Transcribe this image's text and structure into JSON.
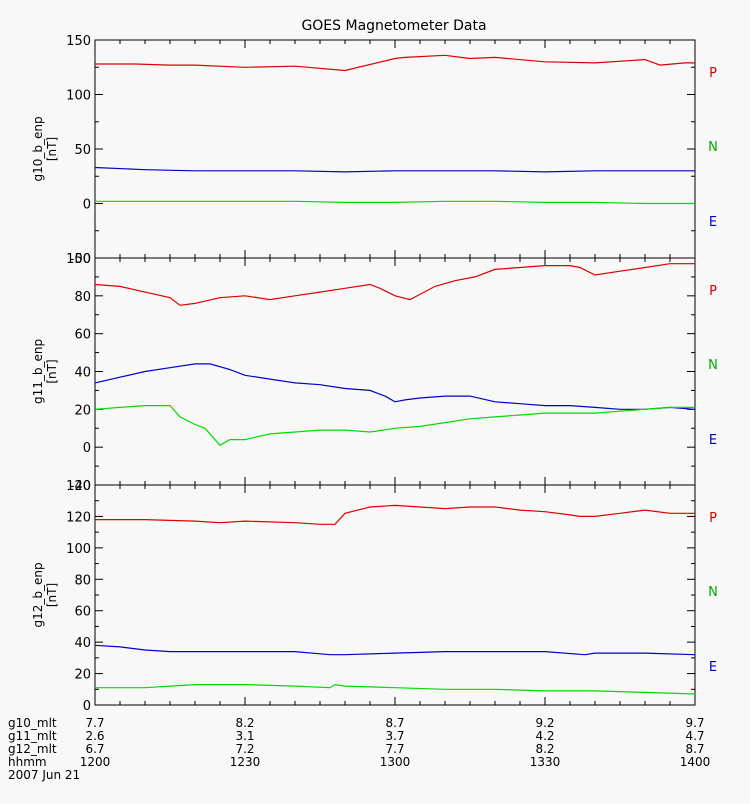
{
  "chart_data": {
    "type": "line",
    "title": "GOES Magnetometer Data",
    "x_axis": {
      "rows": [
        {
          "label": "g10_mlt",
          "values": [
            "7.7",
            "8.2",
            "8.7",
            "9.2",
            "9.7"
          ]
        },
        {
          "label": "g11_mlt",
          "values": [
            "2.6",
            "3.1",
            "3.7",
            "4.2",
            "4.7"
          ]
        },
        {
          "label": "g12_mlt",
          "values": [
            "6.7",
            "7.2",
            "7.7",
            "8.2",
            "8.7"
          ]
        },
        {
          "label": "hhmm",
          "values": [
            "1200",
            "1230",
            "1300",
            "1330",
            "1400"
          ]
        }
      ],
      "date": "2007 Jun 21",
      "range_minutes": [
        0,
        120
      ]
    },
    "panels": [
      {
        "ylabel": "g10_b_enp",
        "unit": "[nT]",
        "ylim": [
          -50,
          150
        ],
        "yticks": [
          -50,
          0,
          50,
          100,
          150
        ],
        "series": [
          {
            "name": "P",
            "color": "#dd0000",
            "x": [
              0,
              8,
              15,
              20,
              30,
              40,
              50,
              60,
              62,
              70,
              75,
              80,
              90,
              100,
              110,
              113,
              118,
              120
            ],
            "y": [
              128,
              128,
              127,
              127,
              125,
              126,
              122,
              133,
              134,
              136,
              133,
              134,
              130,
              129,
              132,
              127,
              129,
              129
            ]
          },
          {
            "name": "N",
            "color": "#0000cc",
            "x": [
              0,
              10,
              20,
              30,
              40,
              50,
              60,
              70,
              80,
              90,
              100,
              110,
              120
            ],
            "y": [
              33,
              31,
              30,
              30,
              30,
              29,
              30,
              30,
              30,
              29,
              30,
              30,
              30
            ]
          },
          {
            "name": "E",
            "color": "#00dd00",
            "x": [
              0,
              10,
              20,
              30,
              40,
              50,
              60,
              70,
              80,
              90,
              100,
              110,
              120
            ],
            "y": [
              2,
              2,
              2,
              2,
              2,
              1,
              1,
              2,
              2,
              1,
              1,
              0,
              0
            ]
          }
        ]
      },
      {
        "ylabel": "g11_b_enp",
        "unit": "[nT]",
        "ylim": [
          -20,
          100
        ],
        "yticks": [
          -20,
          0,
          20,
          40,
          60,
          80,
          100
        ],
        "series": [
          {
            "name": "P",
            "color": "#dd0000",
            "x": [
              0,
              5,
              10,
              15,
              17,
              20,
              25,
              30,
              35,
              40,
              45,
              50,
              55,
              57,
              60,
              63,
              68,
              72,
              76,
              80,
              85,
              90,
              95,
              97,
              100,
              105,
              110,
              115,
              120
            ],
            "y": [
              86,
              85,
              82,
              79,
              75,
              76,
              79,
              80,
              78,
              80,
              82,
              84,
              86,
              84,
              80,
              78,
              85,
              88,
              90,
              94,
              95,
              96,
              96,
              95,
              91,
              93,
              95,
              97,
              97
            ]
          },
          {
            "name": "N",
            "color": "#0000cc",
            "x": [
              0,
              5,
              10,
              15,
              20,
              23,
              27,
              30,
              35,
              40,
              45,
              50,
              55,
              58,
              60,
              62,
              65,
              70,
              75,
              80,
              85,
              90,
              95,
              100,
              105,
              110,
              115,
              120
            ],
            "y": [
              34,
              37,
              40,
              42,
              44,
              44,
              41,
              38,
              36,
              34,
              33,
              31,
              30,
              27,
              24,
              25,
              26,
              27,
              27,
              24,
              23,
              22,
              22,
              21,
              20,
              20,
              21,
              20
            ]
          },
          {
            "name": "E",
            "color": "#00dd00",
            "x": [
              0,
              5,
              10,
              15,
              17,
              20,
              22,
              25,
              27,
              30,
              35,
              40,
              45,
              50,
              55,
              60,
              65,
              70,
              75,
              80,
              85,
              90,
              95,
              100,
              105,
              110,
              115,
              120
            ],
            "y": [
              20,
              21,
              22,
              22,
              16,
              12,
              10,
              1,
              4,
              4,
              7,
              8,
              9,
              9,
              8,
              10,
              11,
              13,
              15,
              16,
              17,
              18,
              18,
              18,
              19,
              20,
              21,
              21
            ]
          }
        ]
      },
      {
        "ylabel": "g12_b_enp",
        "unit": "[nT]",
        "ylim": [
          0,
          140
        ],
        "yticks": [
          0,
          20,
          40,
          60,
          80,
          100,
          120,
          140
        ],
        "series": [
          {
            "name": "P",
            "color": "#dd0000",
            "x": [
              0,
              10,
              20,
              25,
              30,
              40,
              45,
              48,
              50,
              55,
              60,
              65,
              70,
              75,
              80,
              85,
              90,
              95,
              97,
              100,
              105,
              110,
              115,
              120
            ],
            "y": [
              118,
              118,
              117,
              116,
              117,
              116,
              115,
              115,
              122,
              126,
              127,
              126,
              125,
              126,
              126,
              124,
              123,
              121,
              120,
              120,
              122,
              124,
              122,
              122
            ]
          },
          {
            "name": "N",
            "color": "#0000cc",
            "x": [
              0,
              5,
              10,
              15,
              20,
              30,
              40,
              47,
              50,
              60,
              70,
              80,
              90,
              98,
              100,
              110,
              120
            ],
            "y": [
              38,
              37,
              35,
              34,
              34,
              34,
              34,
              32,
              32,
              33,
              34,
              34,
              34,
              32,
              33,
              33,
              32
            ]
          },
          {
            "name": "E",
            "color": "#00dd00",
            "x": [
              0,
              5,
              10,
              15,
              20,
              25,
              30,
              40,
              47,
              48,
              50,
              60,
              70,
              80,
              90,
              100,
              110,
              120
            ],
            "y": [
              11,
              11,
              11,
              12,
              13,
              13,
              13,
              12,
              11,
              13,
              12,
              11,
              10,
              10,
              9,
              9,
              8,
              7
            ]
          }
        ]
      }
    ]
  }
}
